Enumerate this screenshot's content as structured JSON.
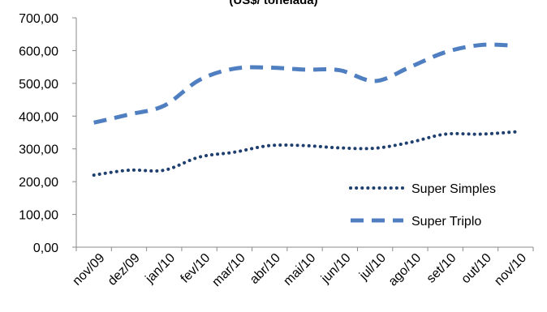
{
  "chart_data": {
    "type": "line",
    "title": "(US$/ tonelada)",
    "xlabel": "",
    "ylabel": "",
    "categories": [
      "nov/09",
      "dez/09",
      "jan/10",
      "fev/10",
      "mar/10",
      "abr/10",
      "mai/10",
      "jun/10",
      "jul/10",
      "ago/10",
      "set/10",
      "out/10",
      "nov/10"
    ],
    "ylim": [
      0,
      700
    ],
    "yticks": [
      "0,00",
      "100,00",
      "200,00",
      "300,00",
      "400,00",
      "500,00",
      "600,00",
      "700,00"
    ],
    "grid": false,
    "legend_position": "bottom-right",
    "series": [
      {
        "name": "Super Simples",
        "line_style": "dotted",
        "color": "#1F3F6E",
        "values": [
          220,
          235,
          235,
          275,
          290,
          310,
          310,
          303,
          302,
          320,
          345,
          345,
          352
        ]
      },
      {
        "name": "Super Triplo",
        "line_style": "dashed",
        "color": "#4F7FC0",
        "values": [
          380,
          405,
          432,
          510,
          545,
          548,
          542,
          540,
          507,
          550,
          595,
          617,
          615
        ]
      }
    ]
  }
}
